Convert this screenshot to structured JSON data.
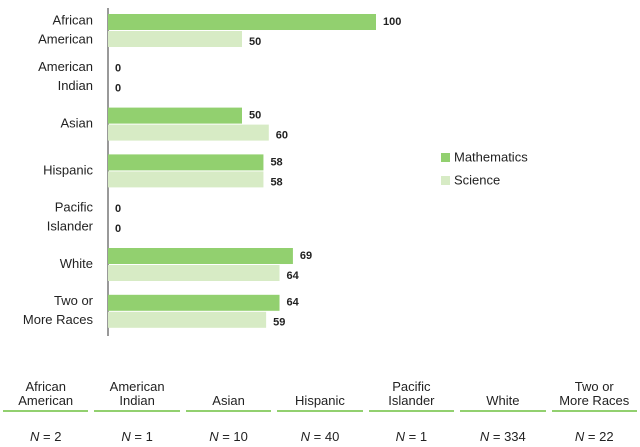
{
  "chart_data": {
    "type": "bar",
    "categories": [
      [
        "African",
        "American"
      ],
      [
        "American",
        "Indian"
      ],
      [
        "Asian"
      ],
      [
        "Hispanic"
      ],
      [
        "Pacific",
        "Islander"
      ],
      [
        "White"
      ],
      [
        "Two or",
        "More Races"
      ]
    ],
    "series": [
      {
        "name": "Mathematics",
        "color": "#92d06f",
        "values": [
          100,
          0,
          50,
          58,
          0,
          69,
          64
        ]
      },
      {
        "name": "Science",
        "color": "#d7ebc5",
        "values": [
          50,
          0,
          60,
          58,
          0,
          64,
          59
        ]
      }
    ]
  },
  "table": {
    "columns": [
      {
        "header": [
          "African",
          "American"
        ],
        "n": "N = 2"
      },
      {
        "header": [
          "American",
          "Indian"
        ],
        "n": "N = 1"
      },
      {
        "header": [
          "Asian"
        ],
        "n": "N = 10"
      },
      {
        "header": [
          "Hispanic"
        ],
        "n": "N = 40"
      },
      {
        "header": [
          "Pacific",
          "Islander"
        ],
        "n": "N = 1"
      },
      {
        "header": [
          "White"
        ],
        "n": "N = 334"
      },
      {
        "header": [
          "Two or",
          "More Races"
        ],
        "n": "N = 22"
      }
    ]
  }
}
